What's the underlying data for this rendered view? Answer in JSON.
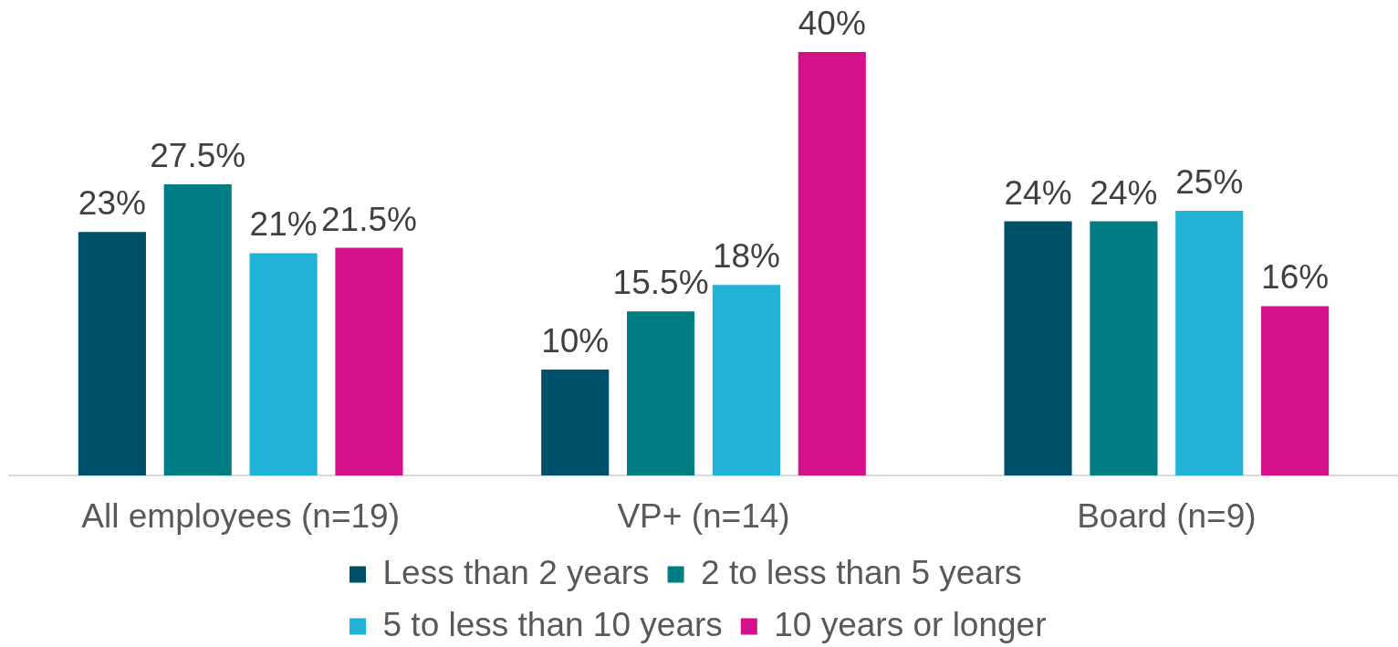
{
  "chart_data": {
    "type": "bar",
    "categories": [
      "All employees (n=19)",
      "VP+ (n=14)",
      "Board (n=9)"
    ],
    "series": [
      {
        "name": "Less than 2 years",
        "color": "#00506a",
        "values": [
          23,
          10,
          24
        ],
        "value_labels": [
          "23%",
          "10%",
          "24%"
        ]
      },
      {
        "name": "2 to less than 5 years",
        "color": "#007c85",
        "values": [
          27.5,
          15.5,
          24
        ],
        "value_labels": [
          "27.5%",
          "15.5%",
          "24%"
        ]
      },
      {
        "name": "5 to less than 10 years",
        "color": "#21b3d6",
        "values": [
          21,
          18,
          25
        ],
        "value_labels": [
          "21%",
          "18%",
          "25%"
        ]
      },
      {
        "name": "10 years or longer",
        "color": "#d4118a",
        "values": [
          21.5,
          40,
          16
        ],
        "value_labels": [
          "21.5%",
          "40%",
          "16%"
        ]
      }
    ],
    "ylim": [
      0,
      40
    ],
    "legend": "bottom",
    "grid": false
  }
}
